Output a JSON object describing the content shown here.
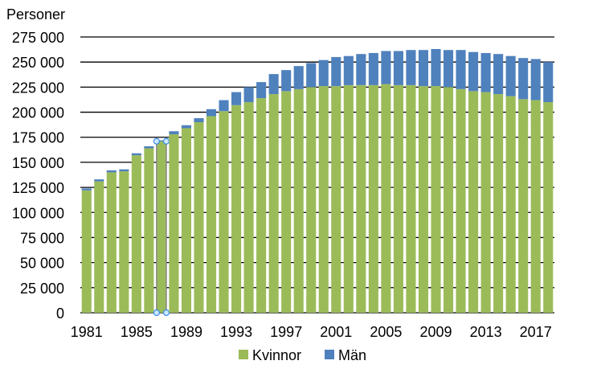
{
  "chart_data": {
    "type": "bar",
    "stacked": true,
    "ylabel": "Personer",
    "ylim": [
      0,
      275000
    ],
    "yticks": [
      0,
      25000,
      50000,
      75000,
      100000,
      125000,
      150000,
      175000,
      200000,
      225000,
      250000,
      275000
    ],
    "ytick_labels": [
      "0",
      "25 000",
      "50 000",
      "75 000",
      "100 000",
      "125 000",
      "150 000",
      "175 000",
      "200 000",
      "225 000",
      "250 000",
      "275 000"
    ],
    "grid": true,
    "legend_placement": "bottom",
    "categories": [
      1981,
      1982,
      1983,
      1984,
      1985,
      1986,
      1987,
      1988,
      1989,
      1990,
      1991,
      1992,
      1993,
      1994,
      1995,
      1996,
      1997,
      1998,
      1999,
      2000,
      2001,
      2002,
      2003,
      2004,
      2005,
      2006,
      2007,
      2008,
      2009,
      2010,
      2011,
      2012,
      2013,
      2014,
      2015,
      2016,
      2017,
      2018
    ],
    "xtick_labels": [
      "1981",
      "1985",
      "1989",
      "1993",
      "1997",
      "2001",
      "2005",
      "2009",
      "2013",
      "2017"
    ],
    "series": [
      {
        "name": "Kvinnor",
        "color": "#9BBB59",
        "values": [
          122000,
          131000,
          140000,
          141000,
          157000,
          164000,
          171000,
          178000,
          184000,
          190000,
          196000,
          201000,
          207000,
          210000,
          214000,
          218000,
          221000,
          223000,
          225000,
          226000,
          226000,
          227000,
          227000,
          227000,
          228000,
          227000,
          227000,
          226000,
          226000,
          225000,
          223000,
          221000,
          220000,
          218000,
          216000,
          213000,
          212000,
          210000
        ]
      },
      {
        "name": "Män",
        "color": "#4F81BD",
        "values": [
          2000,
          2000,
          2000,
          2000,
          2000,
          2000,
          1000,
          3000,
          3000,
          4000,
          7000,
          11000,
          13000,
          15000,
          16000,
          20000,
          21000,
          23000,
          24000,
          26000,
          29000,
          29000,
          31000,
          32000,
          33000,
          34000,
          35000,
          36000,
          37000,
          37000,
          39000,
          39000,
          39000,
          40000,
          40000,
          41000,
          41000,
          40000
        ]
      }
    ],
    "selected_category": 1987
  }
}
